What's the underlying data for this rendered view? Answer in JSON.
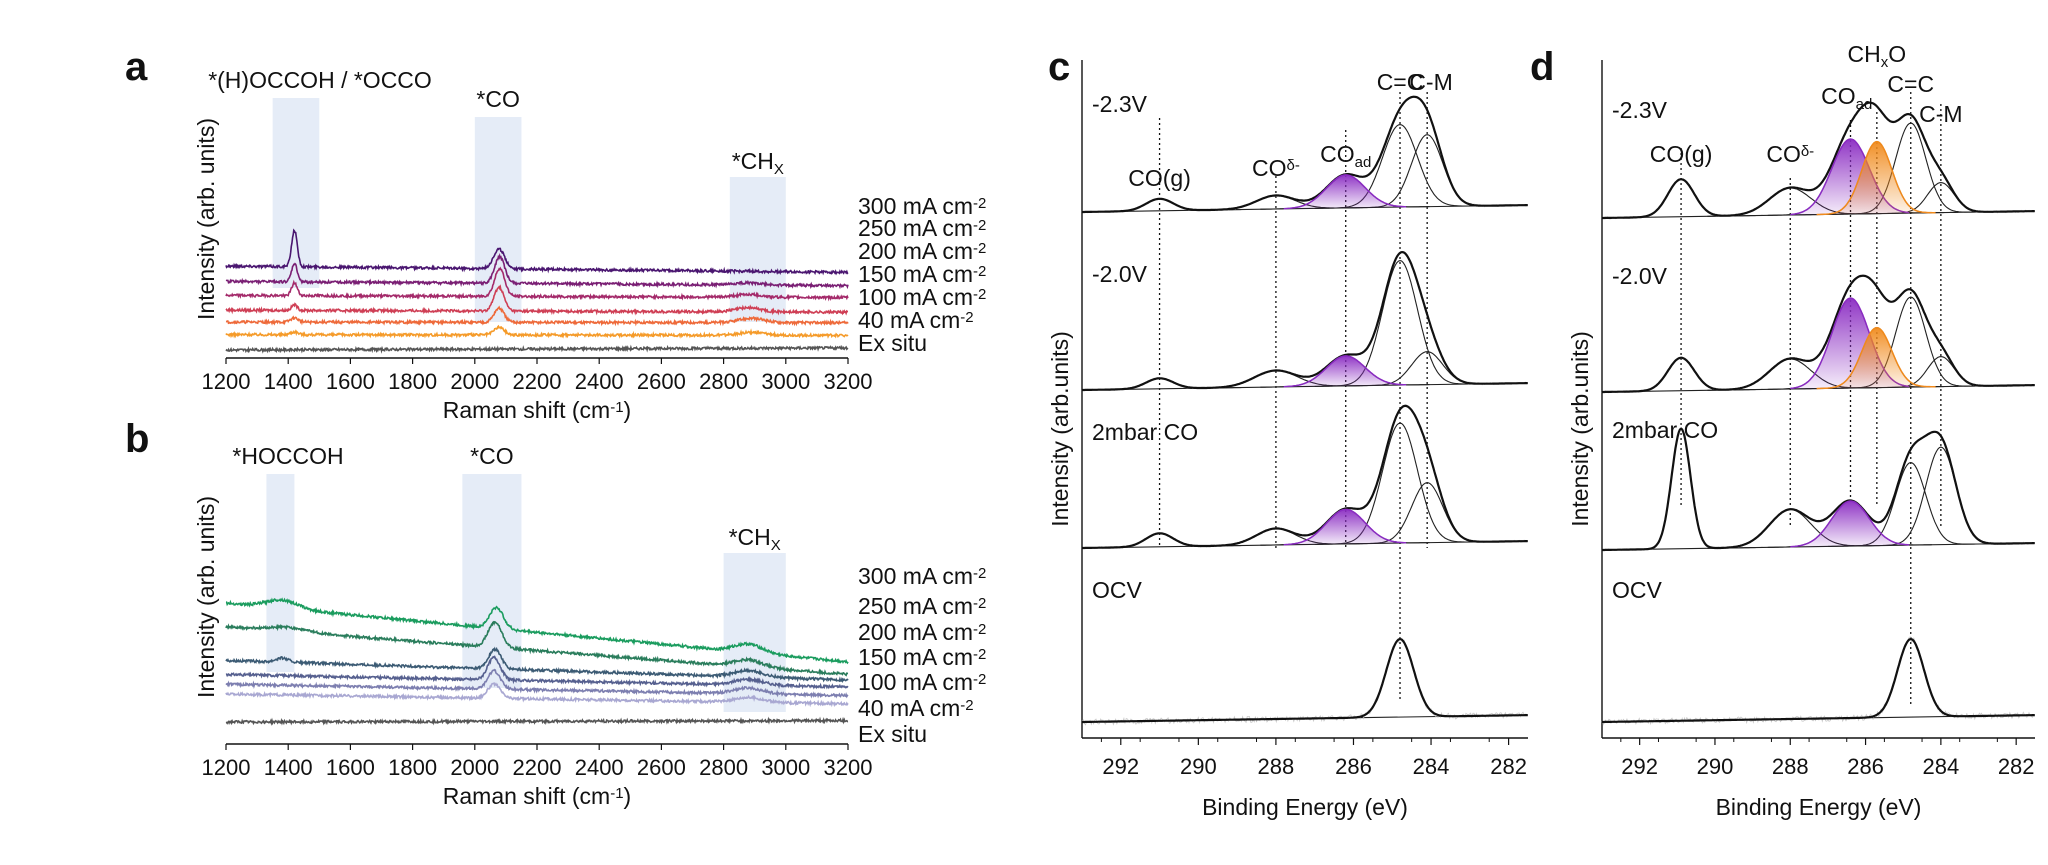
{
  "chart_data": [
    {
      "panel": "a",
      "type": "line",
      "xlabel": "Raman shift (cm⁻¹)",
      "ylabel": "Intensity (arb. units)",
      "xlim": [
        1200,
        3200
      ],
      "xticks": [
        1200,
        1400,
        1600,
        1800,
        2000,
        2200,
        2400,
        2600,
        2800,
        3000,
        3200
      ],
      "y_ticks_shown": false,
      "highlight_bands": [
        {
          "label": "*(H)OCCOH / *OCCO",
          "x_range": [
            1350,
            1500
          ]
        },
        {
          "label": "*CO",
          "x_range": [
            2000,
            2150
          ]
        },
        {
          "label": "*CHX",
          "x_range": [
            2820,
            3000
          ]
        }
      ],
      "series": [
        {
          "name": "300 mA cm-2",
          "color": "#4a1670",
          "offset": 6.0,
          "slope": -0.45,
          "peaks": [
            [
              1420,
              2.6,
              9
            ],
            [
              2078,
              1.4,
              18
            ],
            [
              2950,
              0.0,
              1
            ]
          ]
        },
        {
          "name": "250 mA cm-2",
          "color": "#7a1f74",
          "offset": 4.9,
          "slope": -0.3,
          "peaks": [
            [
              1420,
              1.3,
              9
            ],
            [
              2080,
              1.9,
              16
            ],
            [
              2880,
              0.15,
              40
            ]
          ]
        },
        {
          "name": "200 mA cm-2",
          "color": "#a42a6a",
          "offset": 3.9,
          "slope": -0.15,
          "peaks": [
            [
              1420,
              0.9,
              9
            ],
            [
              2080,
              2.0,
              16
            ],
            [
              2880,
              0.2,
              40
            ]
          ]
        },
        {
          "name": "150 mA cm-2",
          "color": "#cf3f55",
          "offset": 2.85,
          "slope": -0.15,
          "peaks": [
            [
              1420,
              0.4,
              9
            ],
            [
              2078,
              1.7,
              16
            ],
            [
              2880,
              0.3,
              40
            ]
          ]
        },
        {
          "name": "100 mA cm-2",
          "color": "#ee6a3a",
          "offset": 2.0,
          "slope": -0.05,
          "peaks": [
            [
              1420,
              0.3,
              12
            ],
            [
              2078,
              1.0,
              16
            ],
            [
              2890,
              0.3,
              40
            ]
          ]
        },
        {
          "name": "40 mA cm-2",
          "color": "#f59b2a",
          "offset": 1.1,
          "slope": -0.05,
          "peaks": [
            [
              1420,
              0.2,
              12
            ],
            [
              2078,
              0.55,
              16
            ],
            [
              2890,
              0.2,
              40
            ]
          ]
        },
        {
          "name": "Ex situ",
          "color": "#555555",
          "offset": 0.0,
          "slope": 0.15,
          "peaks": []
        }
      ]
    },
    {
      "panel": "b",
      "type": "line",
      "xlabel": "Raman shift (cm⁻¹)",
      "ylabel": "Intensity (arb. units)",
      "xlim": [
        1200,
        3200
      ],
      "xticks": [
        1200,
        1400,
        1600,
        1800,
        2000,
        2200,
        2400,
        2600,
        2800,
        3000,
        3200
      ],
      "y_ticks_shown": false,
      "highlight_bands": [
        {
          "label": "*HOCCOH",
          "x_range": [
            1330,
            1420
          ]
        },
        {
          "label": "*CO",
          "x_range": [
            1960,
            2150
          ]
        },
        {
          "label": "*CHX",
          "x_range": [
            2800,
            3000
          ]
        }
      ],
      "series": [
        {
          "name": "300 mA cm-2",
          "color": "#1a9c5e",
          "offset": 8.5,
          "slope": -4.2,
          "peaks": [
            [
              1380,
              0.6,
              50
            ],
            [
              2070,
              1.5,
              22
            ],
            [
              2880,
              0.6,
              45
            ]
          ]
        },
        {
          "name": "250 mA cm-2",
          "color": "#2a7d5c",
          "offset": 6.8,
          "slope": -3.4,
          "peaks": [
            [
              1400,
              0.3,
              60
            ],
            [
              2065,
              1.8,
              22
            ],
            [
              2880,
              0.5,
              45
            ]
          ]
        },
        {
          "name": "200 mA cm-2",
          "color": "#3c5b74",
          "offset": 4.4,
          "slope": -1.4,
          "peaks": [
            [
              1380,
              0.3,
              20
            ],
            [
              2065,
              1.4,
              20
            ],
            [
              2880,
              0.45,
              45
            ]
          ]
        },
        {
          "name": "150 mA cm-2",
          "color": "#56608f",
          "offset": 3.4,
          "slope": -0.9,
          "peaks": [
            [
              2062,
              1.6,
              20
            ],
            [
              2880,
              0.4,
              45
            ]
          ]
        },
        {
          "name": "100 mA cm-2",
          "color": "#7d7fb0",
          "offset": 2.7,
          "slope": -0.8,
          "peaks": [
            [
              2062,
              1.3,
              20
            ],
            [
              2880,
              0.4,
              45
            ]
          ]
        },
        {
          "name": "40 mA cm-2",
          "color": "#a9a8d2",
          "offset": 2.0,
          "slope": -0.7,
          "peaks": [
            [
              2062,
              1.0,
              20
            ],
            [
              2880,
              0.35,
              45
            ]
          ]
        },
        {
          "name": "Ex situ",
          "color": "#555555",
          "offset": 0.0,
          "slope": 0.1,
          "peaks": []
        }
      ]
    },
    {
      "panel": "c",
      "type": "line",
      "xlabel": "Binding Energy (eV)",
      "ylabel": "Intensity (arb.units)",
      "xlim": [
        293,
        281.5
      ],
      "x_reversed": true,
      "xticks": [
        292,
        290,
        288,
        286,
        284,
        282
      ],
      "y_ticks_shown": false,
      "reference_lines_eV": [
        291.0,
        288.0,
        286.2,
        284.8,
        284.1
      ],
      "peak_labels": [
        {
          "text": "CO(g)",
          "sub": "",
          "sup": "",
          "x": 291.0,
          "row": 0
        },
        {
          "text": "CO",
          "sub": "",
          "sup": "δ-",
          "x": 288.0,
          "row": 0
        },
        {
          "text": "CO",
          "sub": "ad",
          "sup": "",
          "x": 286.2,
          "row": 0
        },
        {
          "text": "C=C",
          "sub": "",
          "sup": "",
          "x": 284.8,
          "row": 0
        },
        {
          "text": "C-M",
          "sub": "",
          "sup": "",
          "x": 284.0,
          "row": 0
        }
      ],
      "spectra": [
        {
          "label": "-2.3V",
          "components": [
            [
              291.0,
              0.08,
              0.35
            ],
            [
              288.0,
              0.09,
              0.5
            ],
            [
              286.2,
              0.22,
              0.5
            ],
            [
              284.8,
              0.55,
              0.45
            ],
            [
              284.1,
              0.48,
              0.4
            ]
          ]
        },
        {
          "label": "-2.0V",
          "components": [
            [
              291.0,
              0.07,
              0.35
            ],
            [
              288.0,
              0.11,
              0.55
            ],
            [
              286.2,
              0.2,
              0.5
            ],
            [
              284.8,
              0.83,
              0.45
            ],
            [
              284.1,
              0.22,
              0.4
            ]
          ]
        },
        {
          "label": "2mbar CO",
          "components": [
            [
              291.0,
              0.09,
              0.35
            ],
            [
              288.0,
              0.11,
              0.5
            ],
            [
              286.2,
              0.23,
              0.5
            ],
            [
              284.8,
              0.8,
              0.45
            ],
            [
              284.1,
              0.4,
              0.4
            ]
          ]
        },
        {
          "label": "OCV",
          "components": [
            [
              284.8,
              0.52,
              0.35
            ]
          ]
        }
      ]
    },
    {
      "panel": "d",
      "type": "line",
      "xlabel": "Binding Energy (eV)",
      "ylabel": "Intensity (arb.units)",
      "xlim": [
        293,
        281.5
      ],
      "x_reversed": true,
      "xticks": [
        292,
        290,
        288,
        286,
        284,
        282
      ],
      "y_ticks_shown": false,
      "reference_lines_eV": [
        290.9,
        288.0,
        286.4,
        285.7,
        284.8,
        284.0
      ],
      "peak_labels": [
        {
          "text": "CO(g)",
          "sub": "",
          "sup": "",
          "x": 290.9,
          "row": 0
        },
        {
          "text": "CO",
          "sub": "",
          "sup": "δ-",
          "x": 288.0,
          "row": 0
        },
        {
          "text": "CO",
          "sub": "ad",
          "sup": "",
          "x": 286.5,
          "row": 1
        },
        {
          "text": "CH",
          "sub": "x",
          "sup": "",
          "x": 285.7,
          "row": 2,
          "tail": "O"
        },
        {
          "text": "C=C",
          "sub": "",
          "sup": "",
          "x": 284.8,
          "row": 1
        },
        {
          "text": "C-M",
          "sub": "",
          "sup": "",
          "x": 284.0,
          "row": 0
        }
      ],
      "spectra": [
        {
          "label": "-2.3V",
          "components": [
            [
              290.9,
              0.25,
              0.35
            ],
            [
              288.0,
              0.18,
              0.55
            ],
            [
              286.4,
              0.5,
              0.5
            ],
            [
              285.7,
              0.48,
              0.4
            ],
            [
              284.8,
              0.6,
              0.4
            ],
            [
              284.0,
              0.2,
              0.35
            ]
          ]
        },
        {
          "label": "-2.0V",
          "components": [
            [
              290.9,
              0.22,
              0.35
            ],
            [
              288.0,
              0.2,
              0.55
            ],
            [
              286.4,
              0.6,
              0.5
            ],
            [
              285.7,
              0.4,
              0.4
            ],
            [
              284.8,
              0.6,
              0.4
            ],
            [
              284.0,
              0.2,
              0.35
            ]
          ]
        },
        {
          "label": "2mbar CO",
          "components": [
            [
              290.9,
              0.8,
              0.25
            ],
            [
              288.0,
              0.25,
              0.55
            ],
            [
              286.4,
              0.3,
              0.5
            ],
            [
              284.8,
              0.55,
              0.4
            ],
            [
              284.0,
              0.65,
              0.4
            ]
          ]
        },
        {
          "label": "OCV",
          "components": [
            [
              284.8,
              0.52,
              0.35
            ]
          ]
        }
      ]
    }
  ],
  "panel_letters": [
    "a",
    "b",
    "c",
    "d"
  ]
}
